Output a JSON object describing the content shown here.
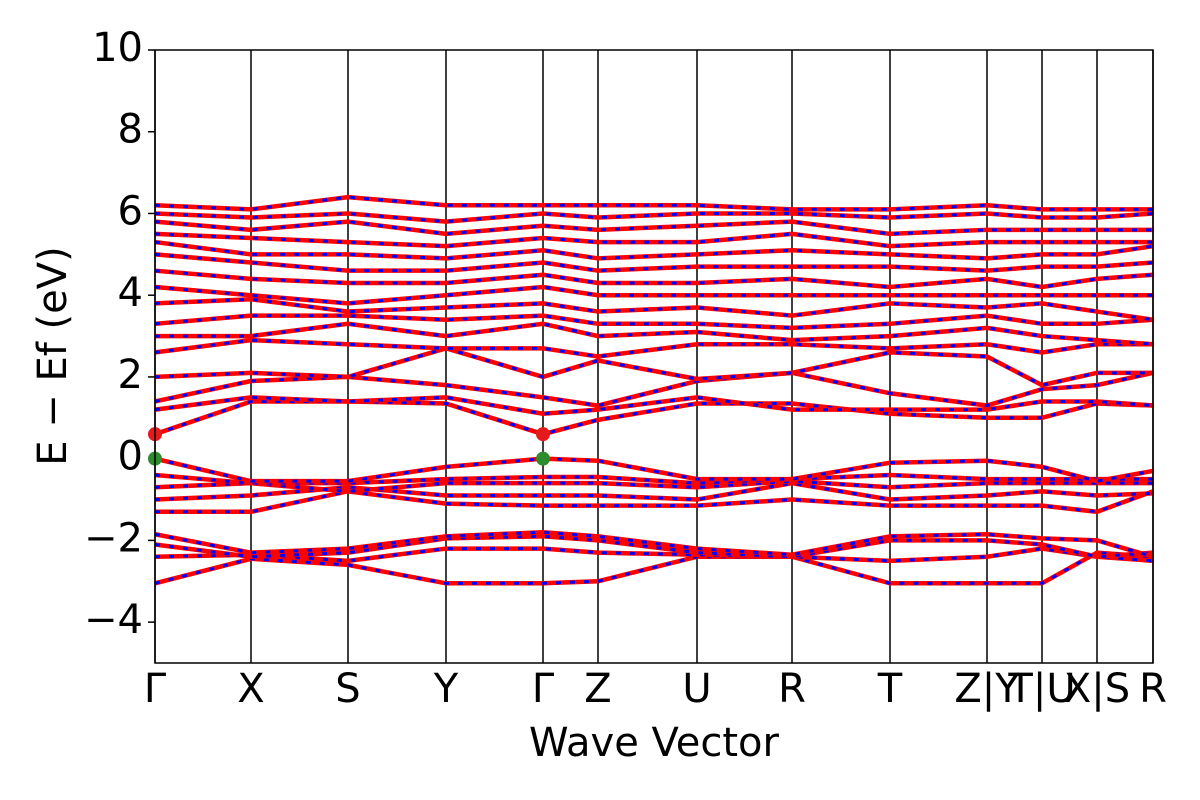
{
  "chart_data": {
    "type": "band_structure",
    "xlabel": "Wave Vector",
    "ylabel": "E − Ef (eV)",
    "xlim": [
      0,
      998
    ],
    "ylim": [
      -5,
      10
    ],
    "xticks": [
      {
        "value": 0,
        "label": "Γ"
      },
      {
        "value": 96,
        "label": "X"
      },
      {
        "value": 193,
        "label": "S"
      },
      {
        "value": 291,
        "label": "Y"
      },
      {
        "value": 388,
        "label": "Γ"
      },
      {
        "value": 443,
        "label": "Z"
      },
      {
        "value": 542,
        "label": "U"
      },
      {
        "value": 637,
        "label": "R"
      },
      {
        "value": 735,
        "label": "T"
      },
      {
        "value": 832,
        "label": "Z|Y"
      },
      {
        "value": 887,
        "label": "T|U"
      },
      {
        "value": 942,
        "label": "X|S"
      },
      {
        "value": 998,
        "label": "R"
      }
    ],
    "yticks": [
      {
        "value": -4,
        "label": "−4"
      },
      {
        "value": -2,
        "label": "−2"
      },
      0,
      2,
      4,
      6,
      8,
      10
    ],
    "grid": true,
    "overlay_color": "#0000ff",
    "x": [
      0,
      96,
      193,
      291,
      388,
      443,
      542,
      637,
      735,
      832,
      887,
      942,
      998
    ],
    "series": [
      {
        "color": "#ff0000",
        "values": [
          -3.05,
          -2.45,
          -2.6,
          -3.05,
          -3.05,
          -3.0,
          -2.4,
          -2.4,
          -3.05,
          -3.05,
          -3.05,
          -2.3,
          -2.4
        ]
      },
      {
        "color": "#ff0000",
        "values": [
          -2.4,
          -2.35,
          -2.5,
          -2.2,
          -2.2,
          -2.3,
          -2.35,
          -2.4,
          -2.5,
          -2.4,
          -2.2,
          -2.4,
          -2.5
        ]
      },
      {
        "color": "#ff0000",
        "values": [
          -2.1,
          -2.4,
          -2.3,
          -1.95,
          -1.9,
          -2.0,
          -2.3,
          -2.4,
          -2.0,
          -2.0,
          -2.1,
          -2.4,
          -2.3
        ]
      },
      {
        "color": "#ff0000",
        "values": [
          -1.85,
          -2.3,
          -2.2,
          -1.9,
          -1.8,
          -1.9,
          -2.2,
          -2.35,
          -1.9,
          -1.85,
          -1.95,
          -2.0,
          -2.4
        ]
      },
      {
        "color": "#ff0000",
        "values": [
          -1.3,
          -1.3,
          -0.8,
          -1.1,
          -1.15,
          -1.15,
          -1.15,
          -1.0,
          -1.15,
          -1.15,
          -1.15,
          -1.3,
          -0.8
        ]
      },
      {
        "color": "#ff0000",
        "values": [
          -1.0,
          -0.9,
          -0.7,
          -0.9,
          -0.9,
          -0.9,
          -1.0,
          -0.6,
          -1.0,
          -0.9,
          -0.8,
          -0.9,
          -0.85
        ]
      },
      {
        "color": "#ff0000",
        "values": [
          -0.7,
          -0.6,
          -0.8,
          -0.6,
          -0.6,
          -0.6,
          -0.7,
          -0.55,
          -0.7,
          -0.6,
          -0.6,
          -0.6,
          -0.6
        ]
      },
      {
        "color": "#ff0000",
        "values": [
          -0.4,
          -0.6,
          -0.6,
          -0.5,
          -0.45,
          -0.45,
          -0.6,
          -0.5,
          -0.4,
          -0.5,
          -0.5,
          -0.5,
          -0.5
        ]
      },
      {
        "color": "#ff0000",
        "values": [
          0.0,
          -0.55,
          -0.55,
          -0.2,
          0.0,
          -0.05,
          -0.5,
          -0.5,
          -0.1,
          -0.05,
          -0.2,
          -0.55,
          -0.3
        ]
      },
      {
        "color": "#ff0000",
        "values": [
          0.6,
          1.4,
          1.4,
          1.35,
          0.6,
          0.95,
          1.35,
          1.35,
          1.1,
          1.0,
          1.0,
          1.35,
          1.3
        ]
      },
      {
        "color": "#ff0000",
        "values": [
          1.2,
          1.5,
          1.4,
          1.5,
          1.1,
          1.2,
          1.5,
          1.2,
          1.2,
          1.2,
          1.4,
          1.4,
          1.3
        ]
      },
      {
        "color": "#ff0000",
        "values": [
          1.4,
          1.9,
          2.0,
          1.8,
          1.5,
          1.3,
          1.9,
          2.1,
          1.6,
          1.3,
          1.7,
          1.8,
          2.1
        ]
      },
      {
        "color": "#ff0000",
        "values": [
          2.0,
          2.1,
          2.0,
          2.7,
          2.0,
          2.4,
          1.95,
          2.1,
          2.6,
          2.5,
          1.8,
          2.1,
          2.1
        ]
      },
      {
        "color": "#ff0000",
        "values": [
          2.6,
          2.9,
          2.8,
          2.7,
          2.7,
          2.5,
          2.8,
          2.8,
          2.7,
          2.8,
          2.6,
          2.8,
          2.8
        ]
      },
      {
        "color": "#ff0000",
        "values": [
          3.0,
          3.0,
          3.3,
          3.0,
          3.3,
          3.0,
          3.1,
          2.9,
          3.0,
          3.2,
          3.0,
          2.9,
          2.8
        ]
      },
      {
        "color": "#ff0000",
        "values": [
          3.3,
          3.5,
          3.5,
          3.4,
          3.5,
          3.3,
          3.3,
          3.2,
          3.3,
          3.5,
          3.3,
          3.3,
          3.4
        ]
      },
      {
        "color": "#ff0000",
        "values": [
          3.8,
          3.9,
          3.6,
          3.7,
          3.8,
          3.6,
          3.7,
          3.5,
          3.8,
          3.7,
          3.8,
          3.6,
          3.4
        ]
      },
      {
        "color": "#ff0000",
        "values": [
          4.2,
          4.0,
          3.8,
          4.0,
          4.2,
          4.0,
          4.0,
          4.0,
          4.0,
          4.0,
          4.0,
          4.0,
          4.0
        ]
      },
      {
        "color": "#ff0000",
        "values": [
          4.6,
          4.4,
          4.3,
          4.3,
          4.5,
          4.3,
          4.3,
          4.4,
          4.2,
          4.4,
          4.2,
          4.4,
          4.5
        ]
      },
      {
        "color": "#ff0000",
        "values": [
          5.0,
          4.8,
          4.6,
          4.6,
          4.8,
          4.6,
          4.7,
          4.7,
          4.7,
          4.6,
          4.7,
          4.7,
          4.8
        ]
      },
      {
        "color": "#ff0000",
        "values": [
          5.3,
          5.0,
          5.0,
          4.9,
          5.1,
          4.9,
          5.0,
          5.1,
          5.0,
          4.9,
          5.0,
          5.0,
          5.2
        ]
      },
      {
        "color": "#ff0000",
        "values": [
          5.5,
          5.4,
          5.3,
          5.2,
          5.4,
          5.3,
          5.3,
          5.5,
          5.2,
          5.3,
          5.3,
          5.3,
          5.3
        ]
      },
      {
        "color": "#ff0000",
        "values": [
          5.8,
          5.6,
          5.8,
          5.5,
          5.7,
          5.6,
          5.7,
          5.8,
          5.5,
          5.6,
          5.6,
          5.6,
          5.6
        ]
      },
      {
        "color": "#ff0000",
        "values": [
          6.0,
          5.9,
          6.0,
          5.8,
          6.0,
          5.9,
          6.0,
          6.0,
          5.9,
          6.0,
          5.9,
          5.9,
          6.0
        ]
      },
      {
        "color": "#ff0000",
        "values": [
          6.2,
          6.1,
          6.4,
          6.2,
          6.2,
          6.2,
          6.2,
          6.1,
          6.1,
          6.2,
          6.1,
          6.1,
          6.1
        ]
      }
    ],
    "markers": [
      {
        "x": 0,
        "y": 0.6,
        "color": "#e41a1c"
      },
      {
        "x": 388,
        "y": 0.6,
        "color": "#e41a1c"
      },
      {
        "x": 0,
        "y": 0,
        "color": "#2e8b2e"
      },
      {
        "x": 388,
        "y": 0,
        "color": "#2e8b2e"
      }
    ]
  }
}
